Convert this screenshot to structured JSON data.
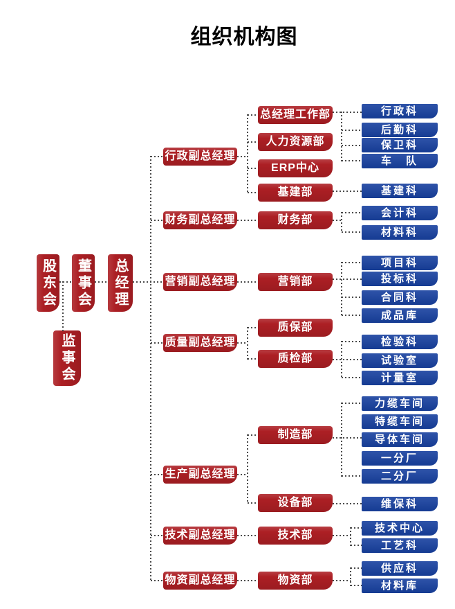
{
  "title": "组织机构图",
  "colors": {
    "box_red": "#AC1F24",
    "box_blue": "#17409F",
    "connector": "#4A4A4A",
    "box_text": "#FFFFFF",
    "title_text": "#000000"
  },
  "governance": [
    {
      "id": "shareholders-meeting",
      "label": "股东会"
    },
    {
      "id": "board-of-directors",
      "label": "董事会"
    },
    {
      "id": "general-manager",
      "label": "总经理"
    },
    {
      "id": "supervisory-board",
      "label": "监事会"
    }
  ],
  "branches": [
    {
      "manager": {
        "id": "admin-vice-gm",
        "label": "行政副总经理"
      },
      "departments": [
        {
          "id": "gm-office",
          "label": "总经理工作部",
          "sections": [
            {
              "id": "admin-section",
              "label": "行政科"
            },
            {
              "id": "logistics-section",
              "label": "后勤科"
            },
            {
              "id": "security-section",
              "label": "保卫科"
            },
            {
              "id": "motor-fleet",
              "label": "车　队"
            }
          ]
        },
        {
          "id": "hr-dept",
          "label": "人力资源部",
          "sections": []
        },
        {
          "id": "erp-center",
          "label": "ERP中心",
          "sections": []
        },
        {
          "id": "infrastructure-dept",
          "label": "基建部",
          "sections": [
            {
              "id": "infrastructure-section",
              "label": "基建科"
            }
          ]
        }
      ]
    },
    {
      "manager": {
        "id": "finance-vice-gm",
        "label": "财务副总经理"
      },
      "departments": [
        {
          "id": "finance-dept",
          "label": "财务部",
          "sections": [
            {
              "id": "accounting-section",
              "label": "会计科"
            },
            {
              "id": "material-section",
              "label": "材料科"
            }
          ]
        }
      ]
    },
    {
      "manager": {
        "id": "marketing-vice-gm",
        "label": "营销副总经理"
      },
      "departments": [
        {
          "id": "marketing-dept",
          "label": "营销部",
          "sections": [
            {
              "id": "project-section",
              "label": "项目科"
            },
            {
              "id": "bidding-section",
              "label": "投标科"
            },
            {
              "id": "contract-section",
              "label": "合同科"
            },
            {
              "id": "finished-goods-store",
              "label": "成品库"
            }
          ]
        }
      ]
    },
    {
      "manager": {
        "id": "quality-vice-gm",
        "label": "质量副总经理"
      },
      "departments": [
        {
          "id": "qa-dept",
          "label": "质保部",
          "sections": []
        },
        {
          "id": "qc-dept",
          "label": "质检部",
          "sections": [
            {
              "id": "inspection-section",
              "label": "检验科"
            },
            {
              "id": "test-room",
              "label": "试验室"
            },
            {
              "id": "metrology-room",
              "label": "计量室"
            }
          ]
        }
      ]
    },
    {
      "manager": {
        "id": "production-vice-gm",
        "label": "生产副总经理"
      },
      "departments": [
        {
          "id": "manufacturing-dept",
          "label": "制造部",
          "sections": [
            {
              "id": "power-cable-shop",
              "label": "力缆车间"
            },
            {
              "id": "special-cable-shop",
              "label": "特缆车间"
            },
            {
              "id": "conductor-shop",
              "label": "导体车间"
            },
            {
              "id": "branch-plant-1",
              "label": "一分厂"
            },
            {
              "id": "branch-plant-2",
              "label": "二分厂"
            }
          ]
        },
        {
          "id": "equipment-dept",
          "label": "设备部",
          "sections": [
            {
              "id": "maintenance-section",
              "label": "维保科"
            }
          ]
        }
      ]
    },
    {
      "manager": {
        "id": "tech-vice-gm",
        "label": "技术副总经理"
      },
      "departments": [
        {
          "id": "tech-dept",
          "label": "技术部",
          "sections": [
            {
              "id": "tech-center",
              "label": "技术中心"
            },
            {
              "id": "process-section",
              "label": "工艺科"
            }
          ]
        }
      ]
    },
    {
      "manager": {
        "id": "material-vice-gm",
        "label": "物资副总经理"
      },
      "departments": [
        {
          "id": "material-dept",
          "label": "物资部",
          "sections": [
            {
              "id": "supply-section",
              "label": "供应科"
            },
            {
              "id": "material-store",
              "label": "材料库"
            }
          ]
        }
      ]
    }
  ]
}
